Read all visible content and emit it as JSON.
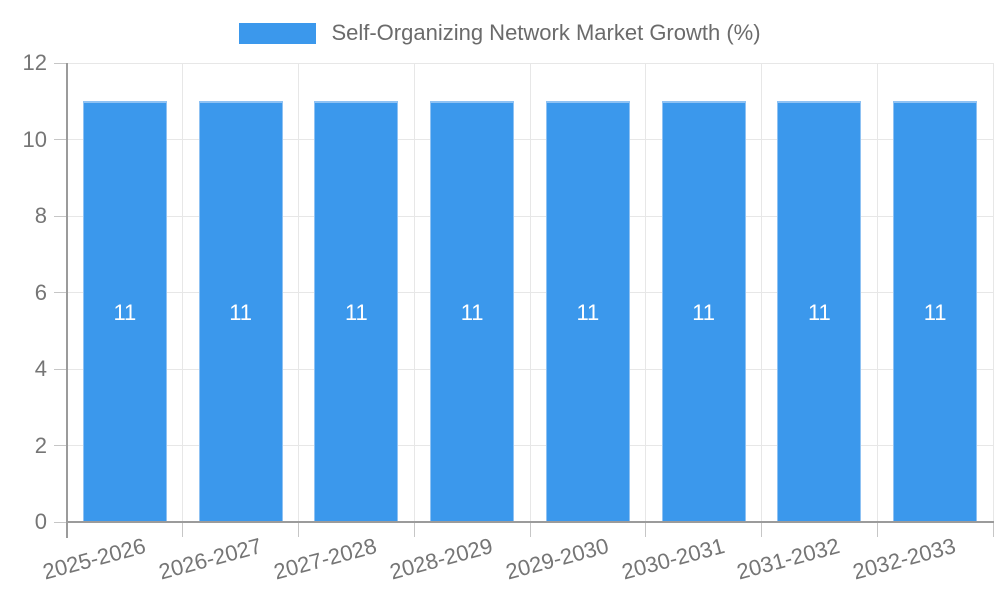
{
  "chart_data": {
    "type": "bar",
    "title": "Self-Organizing Network Market Growth (%)",
    "legend": {
      "label": "Self-Organizing Network Market Growth (%)",
      "position": "top"
    },
    "categories": [
      "2025-2026",
      "2026-2027",
      "2027-2028",
      "2028-2029",
      "2029-2030",
      "2030-2031",
      "2031-2032",
      "2032-2033"
    ],
    "values": [
      11,
      11,
      11,
      11,
      11,
      11,
      11,
      11
    ],
    "value_labels": [
      "11",
      "11",
      "11",
      "11",
      "11",
      "11",
      "11",
      "11"
    ],
    "xlabel": "",
    "ylabel": "",
    "ylim": [
      0,
      12
    ],
    "yticks": [
      0,
      2,
      4,
      6,
      8,
      10,
      12
    ],
    "grid": true,
    "x_tick_rotation_deg": -15,
    "colors": {
      "bar_fill": "#3b98ec",
      "bar_border": "#8fc2f3",
      "value_label": "#ffffff",
      "axis_line": "#9b9b9b",
      "grid_line": "#e7e7e7",
      "tick_mark": "#c6c6c6",
      "tick_label": "#757575",
      "legend_text": "#6b6b6b"
    }
  }
}
